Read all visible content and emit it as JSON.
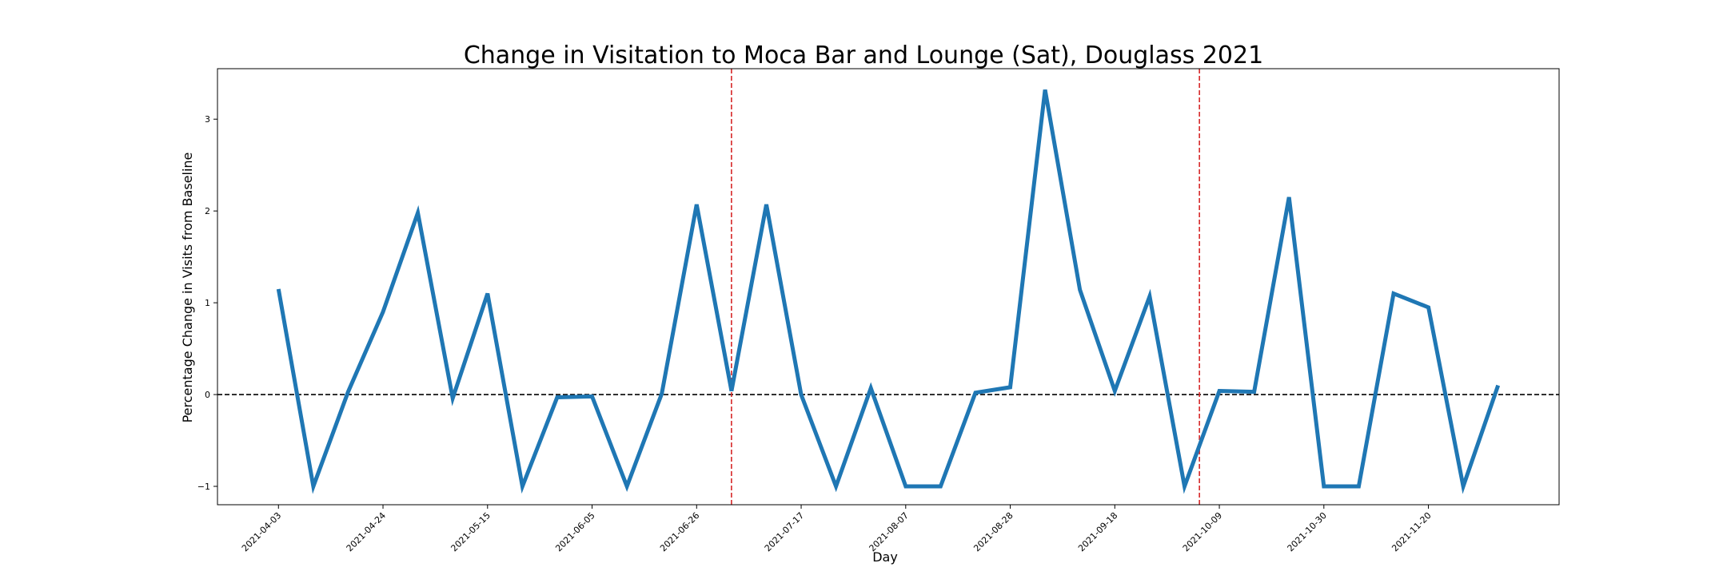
{
  "chart_data": {
    "type": "line",
    "title": "Change in Visitation to Moca Bar and Lounge (Sat), Douglass 2021",
    "xlabel": "Day",
    "ylabel": "Percentage Change in Visits from Baseline",
    "ylim": [
      -1.2,
      3.55
    ],
    "yticks": [
      -1,
      0,
      1,
      2,
      3
    ],
    "ytick_labels": [
      "−1",
      "0",
      "1",
      "2",
      "3"
    ],
    "xticks": [
      "2021-04-03",
      "2021-04-24",
      "2021-05-15",
      "2021-06-05",
      "2021-06-26",
      "2021-07-17",
      "2021-08-07",
      "2021-08-28",
      "2021-09-18",
      "2021-10-09",
      "2021-10-30",
      "2021-11-20"
    ],
    "grid": false,
    "colors": {
      "line": "#1f77b4",
      "baseline": "#000000",
      "vlines": "#d62728"
    },
    "baseline_y": 0,
    "vlines": [
      "2021-07-03",
      "2021-10-05"
    ],
    "series": [
      {
        "x": [
          "2021-04-03",
          "2021-04-10",
          "2021-04-17",
          "2021-04-24",
          "2021-05-01",
          "2021-05-08",
          "2021-05-15",
          "2021-05-22",
          "2021-05-29",
          "2021-06-05",
          "2021-06-12",
          "2021-06-19",
          "2021-06-26",
          "2021-07-03",
          "2021-07-10",
          "2021-07-17",
          "2021-07-24",
          "2021-07-31",
          "2021-08-07",
          "2021-08-14",
          "2021-08-21",
          "2021-08-28",
          "2021-09-04",
          "2021-09-11",
          "2021-09-18",
          "2021-09-25",
          "2021-10-02",
          "2021-10-09",
          "2021-10-16",
          "2021-10-23",
          "2021-10-30",
          "2021-11-06",
          "2021-11-13",
          "2021-11-20",
          "2021-11-27",
          "2021-12-04"
        ],
        "values": [
          1.15,
          -1.0,
          0.03,
          0.9,
          1.98,
          -0.04,
          1.1,
          -1.0,
          -0.03,
          -0.02,
          -1.0,
          0.01,
          2.07,
          0.04,
          2.07,
          0.0,
          -1.0,
          0.07,
          -1.0,
          -1.0,
          0.02,
          0.08,
          3.32,
          1.14,
          0.04,
          1.07,
          -1.0,
          0.04,
          0.03,
          2.15,
          -1.0,
          -1.0,
          1.1,
          0.95,
          -1.0,
          0.1
        ]
      }
    ]
  }
}
